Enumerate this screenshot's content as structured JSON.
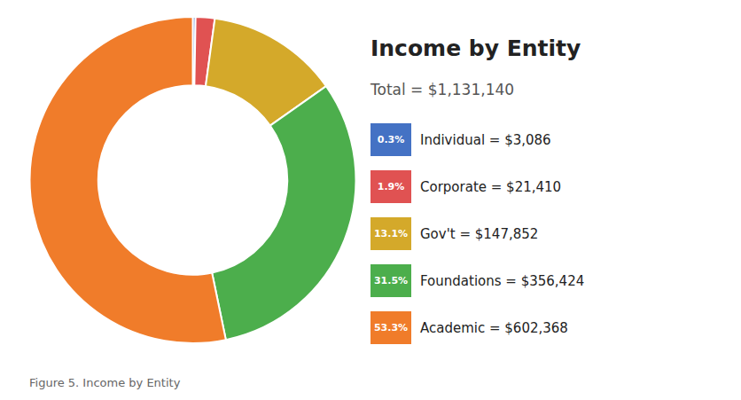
{
  "chart_data": {
    "type": "doughnut",
    "title": "Income by Entity",
    "subtitle": "Total = $1,131,140",
    "caption": "Figure 5. Income by Entity",
    "categories": [
      "Individual = $3,086",
      "Corporate = $21,410",
      "Gov't = $147,852",
      "Foundations = $356,424",
      "Academic = $602,368"
    ],
    "values": [
      3086,
      21410,
      147852,
      356424,
      602368
    ],
    "percentages": [
      0.3,
      1.9,
      13.1,
      31.5,
      53.3
    ],
    "percentage_labels": [
      "0.3%",
      "1.9%",
      "13.1%",
      "31.5%",
      "53.3%"
    ],
    "colors": [
      "#4472c4",
      "#e05252",
      "#d4a92a",
      "#4cae4c",
      "#f07c2a"
    ],
    "legend": "right"
  }
}
